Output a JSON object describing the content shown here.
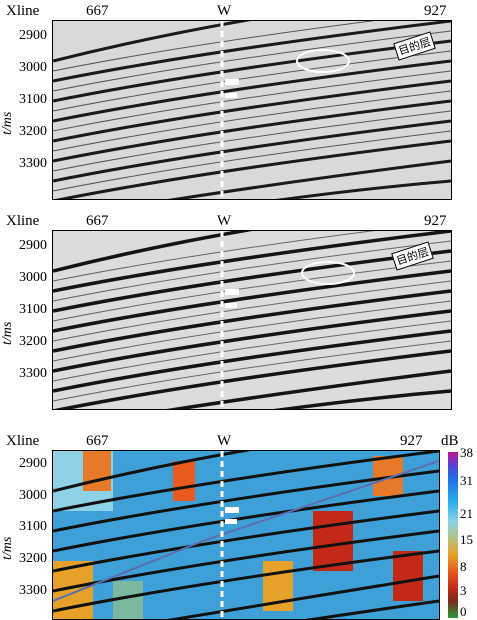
{
  "labels": {
    "xline": "Xline",
    "xline_start": "667",
    "xline_end": "927",
    "well": "W",
    "y_axis": "t/ms",
    "target_layer": "目的层",
    "colorbar_unit": "dB"
  },
  "y_ticks": [
    "2900",
    "3000",
    "3100",
    "3200",
    "3300"
  ],
  "colorbar_ticks": [
    "38",
    "31",
    "21",
    "15",
    "8",
    "3",
    "0"
  ]
}
